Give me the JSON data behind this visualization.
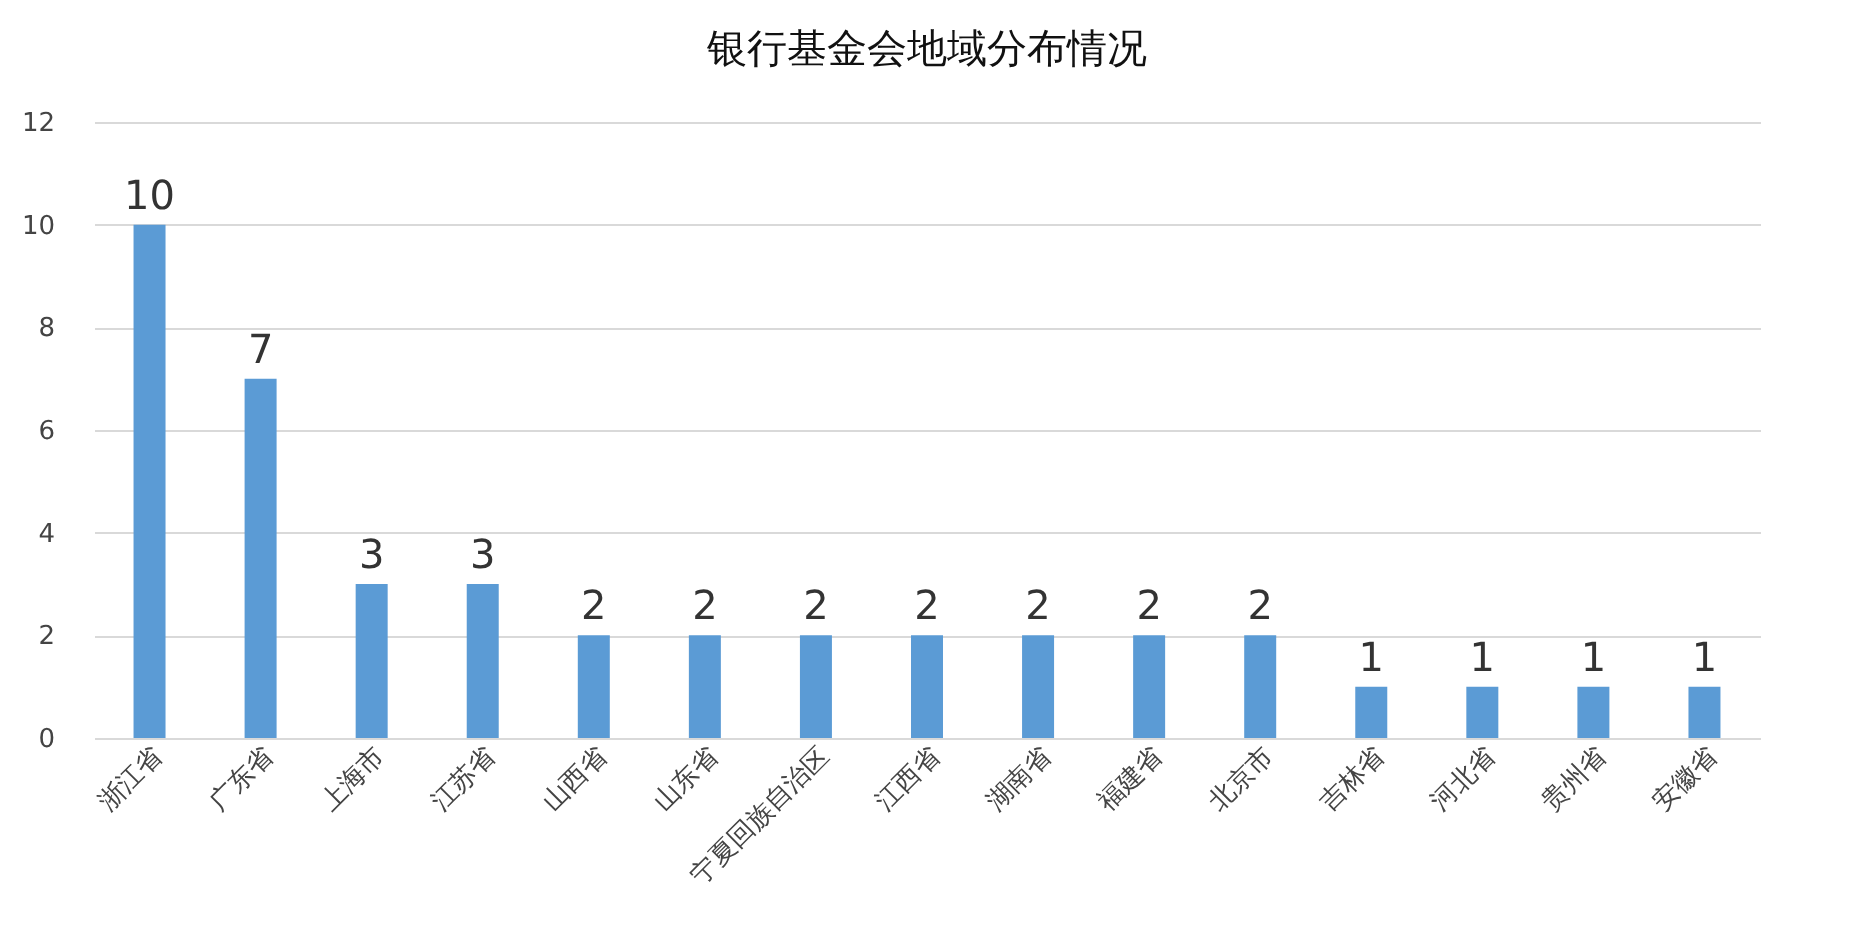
{
  "chart_data": {
    "type": "bar",
    "title": "银行基金会地域分布情况",
    "categories": [
      "浙江省",
      "广东省",
      "上海市",
      "江苏省",
      "山西省",
      "山东省",
      "宁夏回族自治区",
      "江西省",
      "湖南省",
      "福建省",
      "北京市",
      "吉林省",
      "河北省",
      "贵州省",
      "安徽省"
    ],
    "values": [
      10,
      7,
      3,
      3,
      2,
      2,
      2,
      2,
      2,
      2,
      2,
      1,
      1,
      1,
      1
    ],
    "color": "#5b9bd5",
    "ylim": [
      0,
      12
    ],
    "yticks": [
      0,
      2,
      4,
      6,
      8,
      10,
      12
    ],
    "grid": "y",
    "data_labels": true
  }
}
